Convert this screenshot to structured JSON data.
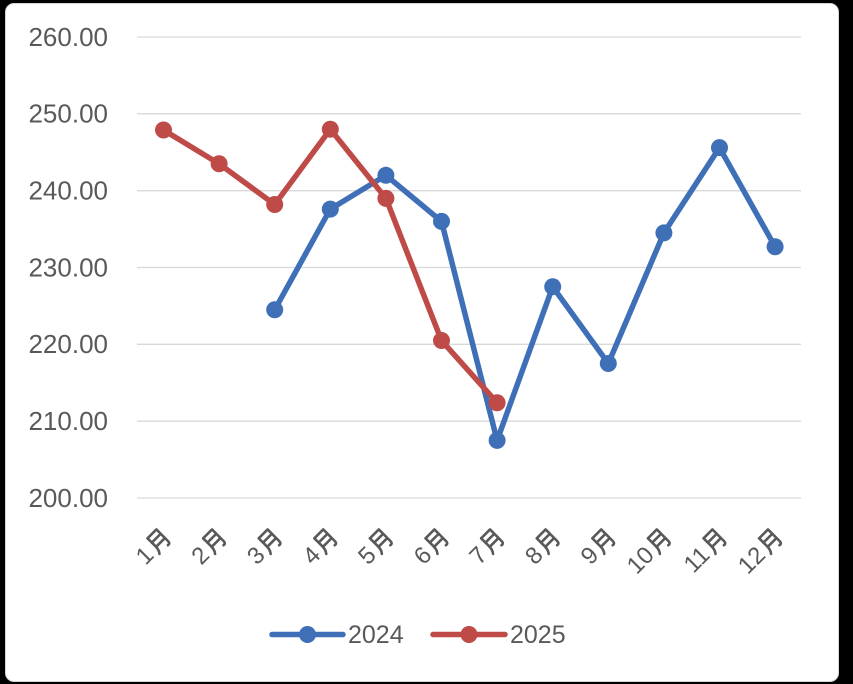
{
  "chart_data": {
    "type": "line",
    "title": "",
    "xlabel": "",
    "ylabel": "",
    "categories": [
      "1月",
      "2月",
      "3月",
      "4月",
      "5月",
      "6月",
      "7月",
      "8月",
      "9月",
      "10月",
      "11月",
      "12月"
    ],
    "series": [
      {
        "name": "2024",
        "color": "#3E6FB7",
        "values": [
          null,
          null,
          224.5,
          237.6,
          242.0,
          236.0,
          207.5,
          227.5,
          217.5,
          234.5,
          245.6,
          232.7
        ]
      },
      {
        "name": "2025",
        "color": "#BE4B48",
        "values": [
          247.9,
          243.5,
          238.2,
          248.0,
          239.0,
          220.5,
          212.4,
          null,
          null,
          null,
          null,
          null
        ]
      }
    ],
    "ylim": [
      200,
      260
    ],
    "y_tick_values": [
      260,
      250,
      240,
      230,
      220,
      210,
      200
    ],
    "y_tick_labels": [
      "260.00",
      "250.00",
      "240.00",
      "230.00",
      "220.00",
      "210.00",
      "200.00"
    ],
    "grid": true,
    "gridline_color": "#D9D9D9",
    "axis_text_color": "#595959",
    "legend_position": "bottom",
    "legend_labels": [
      "2024",
      "2025"
    ],
    "marker": "circle"
  }
}
